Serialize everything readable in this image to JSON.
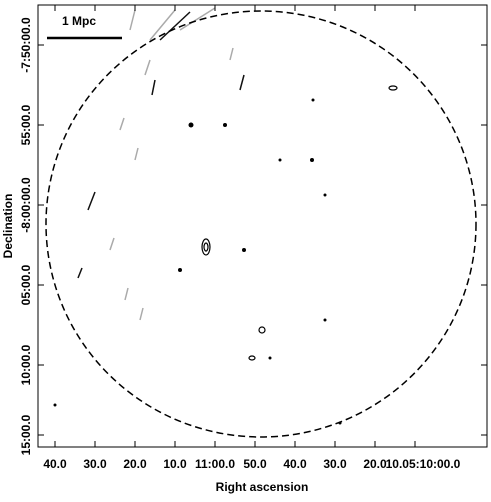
{
  "figure": {
    "x_label": "Right ascension",
    "y_label": "Declination",
    "scale_bar": "1 Mpc",
    "x_ticks": [
      "40.0",
      "30.0",
      "20.0",
      "10.0",
      "11:00.0",
      "50.0",
      "40.0",
      "30.0",
      "20.0",
      "10.05:10:00.0"
    ],
    "y_ticks": [
      "-7:50:00.0",
      "55:00.0",
      "-8:00:00.0",
      "05:00.0",
      "10:00.0",
      "15:00.0"
    ]
  }
}
